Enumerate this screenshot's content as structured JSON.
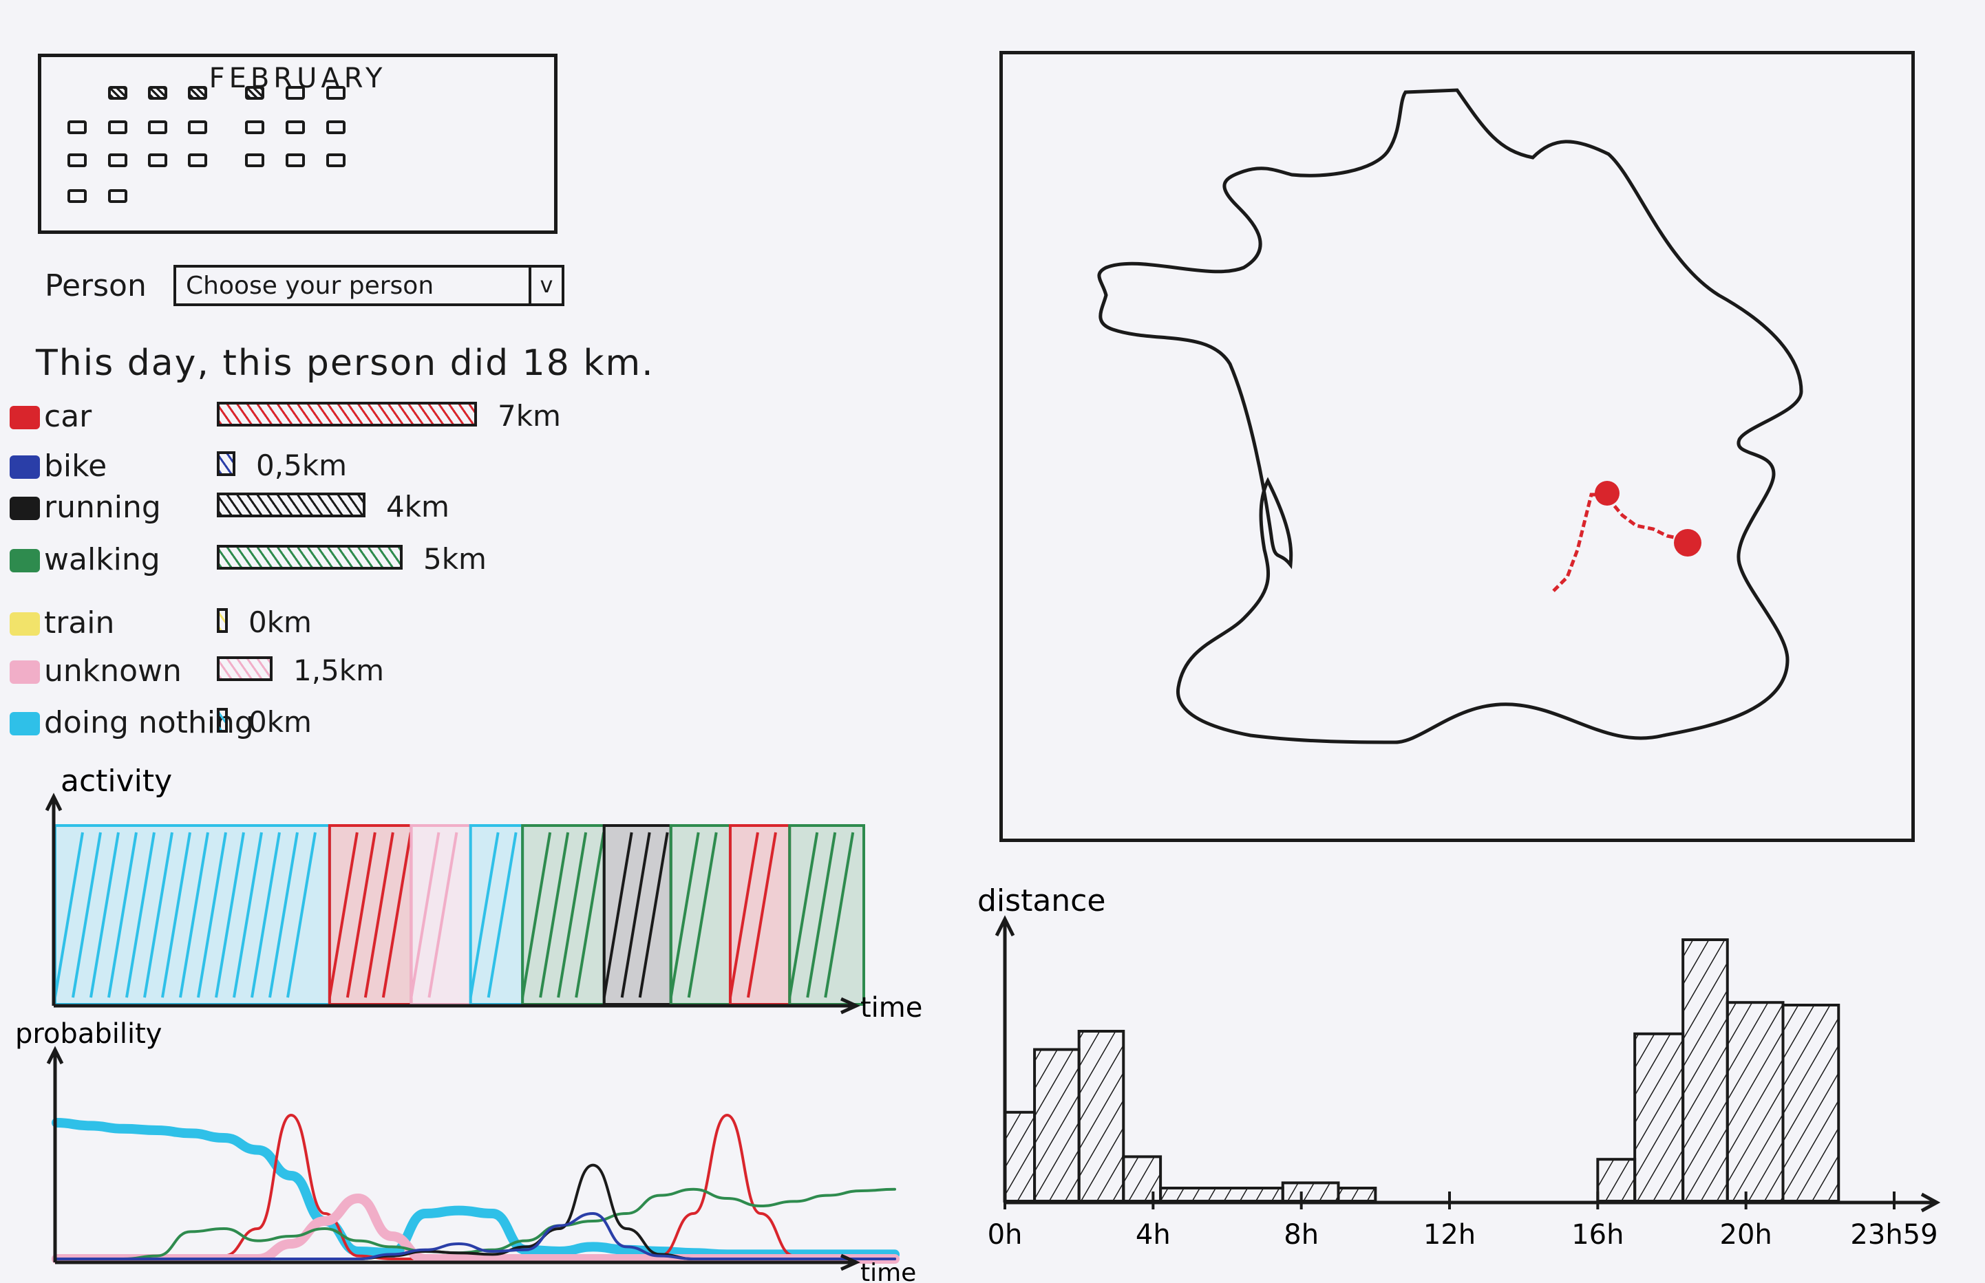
{
  "calendar": {
    "month": "FEBRUARY",
    "days": [
      {
        "row": 0,
        "col": 1,
        "selected": true
      },
      {
        "row": 0,
        "col": 2,
        "selected": true
      },
      {
        "row": 0,
        "col": 3,
        "selected": true
      },
      {
        "row": 0,
        "col": 4,
        "selected": true
      },
      {
        "row": 0,
        "col": 5,
        "selected": false
      },
      {
        "row": 0,
        "col": 6,
        "selected": false
      },
      {
        "row": 1,
        "col": 0,
        "selected": false
      },
      {
        "row": 1,
        "col": 1,
        "selected": false
      },
      {
        "row": 1,
        "col": 2,
        "selected": false
      },
      {
        "row": 1,
        "col": 3,
        "selected": false
      },
      {
        "row": 1,
        "col": 4,
        "selected": false
      },
      {
        "row": 1,
        "col": 5,
        "selected": false
      },
      {
        "row": 1,
        "col": 6,
        "selected": false
      },
      {
        "row": 2,
        "col": 0,
        "selected": false
      },
      {
        "row": 2,
        "col": 1,
        "selected": false
      },
      {
        "row": 2,
        "col": 2,
        "selected": false
      },
      {
        "row": 2,
        "col": 3,
        "selected": false
      },
      {
        "row": 2,
        "col": 4,
        "selected": false
      },
      {
        "row": 2,
        "col": 5,
        "selected": false
      },
      {
        "row": 2,
        "col": 6,
        "selected": false
      },
      {
        "row": 3,
        "col": 0,
        "selected": false
      },
      {
        "row": 3,
        "col": 1,
        "selected": false
      }
    ]
  },
  "person": {
    "label": "Person",
    "value": "Choose your person",
    "arrow": "v"
  },
  "summary": "This day, this person did 18 km.",
  "modes": [
    {
      "name": "car",
      "color": "#d9252c",
      "distance_km": 7,
      "value_label": "7km"
    },
    {
      "name": "bike",
      "color": "#2a3ea8",
      "distance_km": 0.5,
      "value_label": "0,5km"
    },
    {
      "name": "running",
      "color": "#1a1a1a",
      "distance_km": 4,
      "value_label": "4km"
    },
    {
      "name": "walking",
      "color": "#2e8b4e",
      "distance_km": 5,
      "value_label": "5km"
    },
    {
      "name": "train",
      "color": "#f2e36a",
      "distance_km": 0,
      "value_label": "0km"
    },
    {
      "name": "unknown",
      "color": "#f1aec8",
      "distance_km": 1.5,
      "value_label": "1,5km"
    },
    {
      "name": "doing nothing",
      "color": "#2fc0e8",
      "distance_km": 0,
      "value_label": "0km"
    }
  ],
  "activity_chart": {
    "ylabel": "activity",
    "xlabel": "time",
    "segments": [
      {
        "mode": "doing nothing",
        "color": "#2fc0e8",
        "length": 37
      },
      {
        "mode": "car",
        "color": "#d9252c",
        "length": 11
      },
      {
        "mode": "unknown",
        "color": "#f1aec8",
        "length": 8
      },
      {
        "mode": "doing nothing",
        "color": "#2fc0e8",
        "length": 7
      },
      {
        "mode": "walking",
        "color": "#2e8b4e",
        "length": 11
      },
      {
        "mode": "running",
        "color": "#1a1a1a",
        "length": 9
      },
      {
        "mode": "walking",
        "color": "#2e8b4e",
        "length": 8
      },
      {
        "mode": "car",
        "color": "#d9252c",
        "length": 8
      },
      {
        "mode": "walking",
        "color": "#2e8b4e",
        "length": 10
      }
    ]
  },
  "probability_chart": {
    "ylabel": "probability",
    "xlabel": "time",
    "series": [
      {
        "mode": "doing nothing",
        "color": "#2fc0e8",
        "values": [
          0.9,
          0.88,
          0.86,
          0.85,
          0.83,
          0.8,
          0.72,
          0.55,
          0.25,
          0.05,
          0.04,
          0.3,
          0.32,
          0.3,
          0.06,
          0.05,
          0.08,
          0.06,
          0.05,
          0.04,
          0.03,
          0.03,
          0.03,
          0.03,
          0.03,
          0.03
        ]
      },
      {
        "mode": "car",
        "color": "#d9252c",
        "values": [
          0.0,
          0.0,
          0.0,
          0.0,
          0.0,
          0.02,
          0.2,
          0.95,
          0.3,
          0.02,
          0.0,
          0.0,
          0.0,
          0.0,
          0.0,
          0.0,
          0.0,
          0.0,
          0.02,
          0.3,
          0.95,
          0.3,
          0.02,
          0.0,
          0.0,
          0.0
        ]
      },
      {
        "mode": "unknown",
        "color": "#f1aec8",
        "values": [
          0.0,
          0.0,
          0.0,
          0.0,
          0.0,
          0.0,
          0.0,
          0.1,
          0.25,
          0.4,
          0.15,
          0.0,
          0.0,
          0.0,
          0.0,
          0.0,
          0.0,
          0.0,
          0.0,
          0.0,
          0.0,
          0.0,
          0.0,
          0.0,
          0.0,
          0.0
        ]
      },
      {
        "mode": "walking",
        "color": "#2e8b4e",
        "values": [
          0.0,
          0.0,
          0.0,
          0.02,
          0.18,
          0.2,
          0.12,
          0.15,
          0.2,
          0.12,
          0.08,
          0.05,
          0.04,
          0.06,
          0.12,
          0.22,
          0.25,
          0.3,
          0.42,
          0.46,
          0.4,
          0.35,
          0.38,
          0.42,
          0.45,
          0.46
        ]
      },
      {
        "mode": "running",
        "color": "#1a1a1a",
        "values": [
          0.0,
          0.0,
          0.0,
          0.0,
          0.0,
          0.0,
          0.0,
          0.0,
          0.0,
          0.0,
          0.02,
          0.05,
          0.04,
          0.03,
          0.08,
          0.2,
          0.62,
          0.2,
          0.03,
          0.0,
          0.0,
          0.0,
          0.0,
          0.0,
          0.0,
          0.0
        ]
      },
      {
        "mode": "bike",
        "color": "#2a3ea8",
        "values": [
          0.0,
          0.0,
          0.0,
          0.0,
          0.0,
          0.0,
          0.0,
          0.0,
          0.0,
          0.0,
          0.03,
          0.06,
          0.1,
          0.05,
          0.06,
          0.22,
          0.3,
          0.08,
          0.02,
          0.0,
          0.0,
          0.0,
          0.0,
          0.0,
          0.0,
          0.0
        ]
      }
    ]
  },
  "distance_chart": {
    "ylabel": "distance",
    "x_labels": [
      "0h",
      "4h",
      "8h",
      "12h",
      "16h",
      "20h",
      "23h59"
    ],
    "x_label_hours": [
      0,
      4,
      8,
      12,
      16,
      20,
      24
    ],
    "bars": [
      {
        "start_h": 0.0,
        "end_h": 0.8,
        "value": 0.34
      },
      {
        "start_h": 0.8,
        "end_h": 2.0,
        "value": 0.58
      },
      {
        "start_h": 2.0,
        "end_h": 3.2,
        "value": 0.65
      },
      {
        "start_h": 3.2,
        "end_h": 4.2,
        "value": 0.17
      },
      {
        "start_h": 4.2,
        "end_h": 7.5,
        "value": 0.05
      },
      {
        "start_h": 7.5,
        "end_h": 9.0,
        "value": 0.07
      },
      {
        "start_h": 9.0,
        "end_h": 10.0,
        "value": 0.05
      },
      {
        "start_h": 16.0,
        "end_h": 17.0,
        "value": 0.16
      },
      {
        "start_h": 17.0,
        "end_h": 18.3,
        "value": 0.64
      },
      {
        "start_h": 18.3,
        "end_h": 19.5,
        "value": 1.0
      },
      {
        "start_h": 19.5,
        "end_h": 21.0,
        "value": 0.76
      },
      {
        "start_h": 21.0,
        "end_h": 22.5,
        "value": 0.75
      }
    ]
  },
  "map": {
    "route_color": "#d9252c",
    "stops": [
      "origin",
      "destination"
    ]
  }
}
